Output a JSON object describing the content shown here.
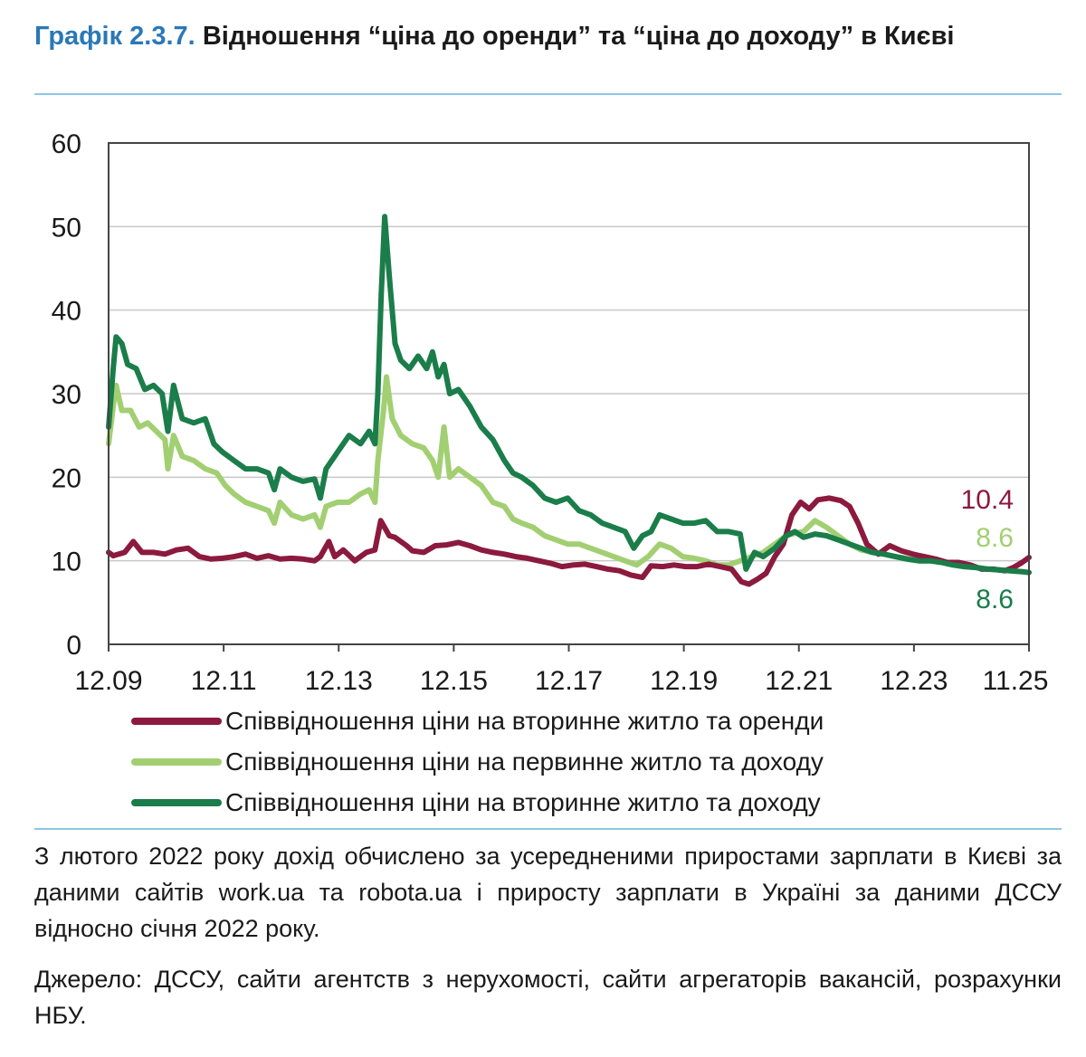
{
  "header": {
    "number": "Графік 2.3.7.",
    "title": "Відношення “ціна до оренди” та “ціна до доходу” в Києві"
  },
  "chart_data": {
    "type": "line",
    "x_ticks": [
      "12.09",
      "12.11",
      "12.13",
      "12.15",
      "12.17",
      "12.19",
      "12.21",
      "12.23",
      "11.25"
    ],
    "ylim": [
      0,
      60
    ],
    "y_ticks": [
      0,
      10,
      20,
      30,
      40,
      50,
      60
    ],
    "grid": true,
    "legend_position": "bottom",
    "series": [
      {
        "name": "Співвідношення ціни на вторинне житло та оренди",
        "color": "#8b1a3e",
        "end_label": "10.4",
        "points": [
          [
            2009.92,
            11.0
          ],
          [
            2010.0,
            10.6
          ],
          [
            2010.2,
            11.0
          ],
          [
            2010.35,
            12.3
          ],
          [
            2010.5,
            11.0
          ],
          [
            2010.7,
            11.0
          ],
          [
            2010.9,
            10.8
          ],
          [
            2011.1,
            11.3
          ],
          [
            2011.3,
            11.5
          ],
          [
            2011.5,
            10.5
          ],
          [
            2011.7,
            10.2
          ],
          [
            2011.9,
            10.3
          ],
          [
            2012.1,
            10.5
          ],
          [
            2012.3,
            10.8
          ],
          [
            2012.5,
            10.3
          ],
          [
            2012.7,
            10.6
          ],
          [
            2012.9,
            10.2
          ],
          [
            2013.1,
            10.3
          ],
          [
            2013.3,
            10.2
          ],
          [
            2013.5,
            10.0
          ],
          [
            2013.6,
            10.5
          ],
          [
            2013.75,
            12.3
          ],
          [
            2013.85,
            10.5
          ],
          [
            2014.0,
            11.3
          ],
          [
            2014.2,
            10.0
          ],
          [
            2014.4,
            11.0
          ],
          [
            2014.55,
            11.3
          ],
          [
            2014.65,
            14.8
          ],
          [
            2014.8,
            13.0
          ],
          [
            2014.9,
            12.8
          ],
          [
            2015.1,
            11.8
          ],
          [
            2015.2,
            11.2
          ],
          [
            2015.4,
            11.0
          ],
          [
            2015.6,
            11.8
          ],
          [
            2015.8,
            11.9
          ],
          [
            2016.0,
            12.2
          ],
          [
            2016.2,
            11.8
          ],
          [
            2016.4,
            11.3
          ],
          [
            2016.6,
            11.0
          ],
          [
            2016.8,
            10.8
          ],
          [
            2017.0,
            10.5
          ],
          [
            2017.2,
            10.3
          ],
          [
            2017.4,
            10.0
          ],
          [
            2017.6,
            9.7
          ],
          [
            2017.8,
            9.3
          ],
          [
            2018.0,
            9.5
          ],
          [
            2018.2,
            9.6
          ],
          [
            2018.4,
            9.3
          ],
          [
            2018.6,
            9.0
          ],
          [
            2018.8,
            8.8
          ],
          [
            2019.0,
            8.3
          ],
          [
            2019.2,
            8.0
          ],
          [
            2019.35,
            9.4
          ],
          [
            2019.55,
            9.3
          ],
          [
            2019.75,
            9.5
          ],
          [
            2019.95,
            9.3
          ],
          [
            2020.15,
            9.3
          ],
          [
            2020.35,
            9.6
          ],
          [
            2020.55,
            9.3
          ],
          [
            2020.75,
            9.0
          ],
          [
            2020.92,
            7.5
          ],
          [
            2021.05,
            7.2
          ],
          [
            2021.2,
            7.8
          ],
          [
            2021.35,
            8.5
          ],
          [
            2021.5,
            10.5
          ],
          [
            2021.65,
            12.0
          ],
          [
            2021.8,
            15.5
          ],
          [
            2021.95,
            17.0
          ],
          [
            2022.1,
            16.2
          ],
          [
            2022.25,
            17.3
          ],
          [
            2022.45,
            17.5
          ],
          [
            2022.65,
            17.2
          ],
          [
            2022.8,
            16.5
          ],
          [
            2022.95,
            14.5
          ],
          [
            2023.1,
            12.0
          ],
          [
            2023.3,
            10.8
          ],
          [
            2023.5,
            11.8
          ],
          [
            2023.7,
            11.2
          ],
          [
            2023.9,
            10.8
          ],
          [
            2024.1,
            10.5
          ],
          [
            2024.3,
            10.2
          ],
          [
            2024.5,
            9.8
          ],
          [
            2024.7,
            9.8
          ],
          [
            2024.9,
            9.5
          ],
          [
            2025.1,
            9.0
          ],
          [
            2025.3,
            9.0
          ],
          [
            2025.5,
            8.8
          ],
          [
            2025.65,
            9.2
          ],
          [
            2025.8,
            9.8
          ],
          [
            2025.92,
            10.4
          ]
        ]
      },
      {
        "name": "Співвідношення ціни на первинне житло та доходу",
        "color": "#a2cf72",
        "end_label": "8.6",
        "points": [
          [
            2009.92,
            24.0
          ],
          [
            2010.0,
            28.5
          ],
          [
            2010.05,
            31.0
          ],
          [
            2010.15,
            28.0
          ],
          [
            2010.3,
            28.0
          ],
          [
            2010.45,
            26.0
          ],
          [
            2010.6,
            26.5
          ],
          [
            2010.75,
            25.5
          ],
          [
            2010.9,
            24.5
          ],
          [
            2010.95,
            21.0
          ],
          [
            2011.05,
            25.0
          ],
          [
            2011.2,
            22.5
          ],
          [
            2011.4,
            22.0
          ],
          [
            2011.6,
            21.0
          ],
          [
            2011.8,
            20.5
          ],
          [
            2011.95,
            19.0
          ],
          [
            2012.1,
            18.0
          ],
          [
            2012.3,
            17.0
          ],
          [
            2012.5,
            16.5
          ],
          [
            2012.7,
            16.0
          ],
          [
            2012.8,
            14.5
          ],
          [
            2012.9,
            17.0
          ],
          [
            2013.1,
            15.5
          ],
          [
            2013.3,
            15.0
          ],
          [
            2013.5,
            15.5
          ],
          [
            2013.6,
            14.0
          ],
          [
            2013.7,
            16.5
          ],
          [
            2013.9,
            17.0
          ],
          [
            2014.1,
            17.0
          ],
          [
            2014.3,
            18.0
          ],
          [
            2014.45,
            18.5
          ],
          [
            2014.55,
            17.0
          ],
          [
            2014.6,
            22.0
          ],
          [
            2014.7,
            28.0
          ],
          [
            2014.75,
            32.0
          ],
          [
            2014.85,
            27.0
          ],
          [
            2015.0,
            25.0
          ],
          [
            2015.2,
            24.0
          ],
          [
            2015.4,
            23.5
          ],
          [
            2015.55,
            22.0
          ],
          [
            2015.65,
            20.0
          ],
          [
            2015.75,
            26.0
          ],
          [
            2015.85,
            20.0
          ],
          [
            2016.0,
            21.0
          ],
          [
            2016.2,
            20.0
          ],
          [
            2016.4,
            19.0
          ],
          [
            2016.6,
            17.0
          ],
          [
            2016.8,
            16.5
          ],
          [
            2016.95,
            15.0
          ],
          [
            2017.1,
            14.5
          ],
          [
            2017.3,
            14.0
          ],
          [
            2017.5,
            13.0
          ],
          [
            2017.7,
            12.5
          ],
          [
            2017.9,
            12.0
          ],
          [
            2018.1,
            12.0
          ],
          [
            2018.3,
            11.5
          ],
          [
            2018.5,
            11.0
          ],
          [
            2018.7,
            10.5
          ],
          [
            2018.9,
            10.0
          ],
          [
            2019.1,
            9.5
          ],
          [
            2019.3,
            10.5
          ],
          [
            2019.5,
            12.0
          ],
          [
            2019.7,
            11.5
          ],
          [
            2019.9,
            10.5
          ],
          [
            2020.1,
            10.3
          ],
          [
            2020.3,
            10.0
          ],
          [
            2020.5,
            9.5
          ],
          [
            2020.7,
            9.5
          ],
          [
            2020.9,
            10.0
          ],
          [
            2021.1,
            10.5
          ],
          [
            2021.3,
            11.0
          ],
          [
            2021.5,
            12.0
          ],
          [
            2021.7,
            13.0
          ],
          [
            2021.85,
            13.3
          ],
          [
            2022.0,
            13.5
          ],
          [
            2022.2,
            14.8
          ],
          [
            2022.4,
            14.0
          ],
          [
            2022.6,
            13.0
          ],
          [
            2022.8,
            12.0
          ],
          [
            2023.0,
            11.3
          ],
          [
            2023.2,
            11.0
          ],
          [
            2023.4,
            10.8
          ],
          [
            2023.6,
            10.5
          ],
          [
            2023.8,
            10.3
          ],
          [
            2024.0,
            10.0
          ],
          [
            2024.2,
            10.0
          ],
          [
            2024.4,
            9.8
          ],
          [
            2024.6,
            9.5
          ],
          [
            2024.8,
            9.3
          ],
          [
            2025.0,
            9.2
          ],
          [
            2025.2,
            9.0
          ],
          [
            2025.4,
            8.9
          ],
          [
            2025.6,
            8.8
          ],
          [
            2025.8,
            8.7
          ],
          [
            2025.92,
            8.6
          ]
        ]
      },
      {
        "name": "Співвідношення ціни на вторинне житло та доходу",
        "color": "#1a7d4a",
        "end_label": "8.6",
        "points": [
          [
            2009.92,
            26.0
          ],
          [
            2010.0,
            33.0
          ],
          [
            2010.05,
            36.8
          ],
          [
            2010.15,
            36.0
          ],
          [
            2010.25,
            33.5
          ],
          [
            2010.4,
            33.0
          ],
          [
            2010.55,
            30.5
          ],
          [
            2010.7,
            31.0
          ],
          [
            2010.85,
            30.0
          ],
          [
            2010.95,
            25.5
          ],
          [
            2011.05,
            31.0
          ],
          [
            2011.2,
            27.0
          ],
          [
            2011.4,
            26.5
          ],
          [
            2011.6,
            27.0
          ],
          [
            2011.75,
            24.0
          ],
          [
            2011.9,
            23.0
          ],
          [
            2012.1,
            22.0
          ],
          [
            2012.3,
            21.0
          ],
          [
            2012.5,
            21.0
          ],
          [
            2012.7,
            20.5
          ],
          [
            2012.8,
            18.5
          ],
          [
            2012.9,
            21.0
          ],
          [
            2013.1,
            20.0
          ],
          [
            2013.3,
            19.5
          ],
          [
            2013.5,
            19.8
          ],
          [
            2013.6,
            17.5
          ],
          [
            2013.7,
            21.0
          ],
          [
            2013.9,
            23.0
          ],
          [
            2014.1,
            25.0
          ],
          [
            2014.3,
            24.0
          ],
          [
            2014.45,
            25.5
          ],
          [
            2014.55,
            24.0
          ],
          [
            2014.6,
            30.0
          ],
          [
            2014.66,
            42.0
          ],
          [
            2014.72,
            51.2
          ],
          [
            2014.8,
            44.0
          ],
          [
            2014.9,
            36.0
          ],
          [
            2015.0,
            34.0
          ],
          [
            2015.15,
            33.0
          ],
          [
            2015.3,
            34.5
          ],
          [
            2015.45,
            33.0
          ],
          [
            2015.55,
            35.0
          ],
          [
            2015.65,
            32.0
          ],
          [
            2015.75,
            33.5
          ],
          [
            2015.85,
            30.0
          ],
          [
            2016.0,
            30.5
          ],
          [
            2016.2,
            28.5
          ],
          [
            2016.4,
            26.0
          ],
          [
            2016.6,
            24.5
          ],
          [
            2016.8,
            22.0
          ],
          [
            2016.95,
            20.5
          ],
          [
            2017.1,
            20.0
          ],
          [
            2017.3,
            19.0
          ],
          [
            2017.5,
            17.5
          ],
          [
            2017.7,
            17.0
          ],
          [
            2017.9,
            17.5
          ],
          [
            2018.1,
            16.0
          ],
          [
            2018.3,
            15.5
          ],
          [
            2018.5,
            14.5
          ],
          [
            2018.7,
            14.0
          ],
          [
            2018.9,
            13.5
          ],
          [
            2019.05,
            11.5
          ],
          [
            2019.2,
            13.0
          ],
          [
            2019.35,
            13.5
          ],
          [
            2019.5,
            15.5
          ],
          [
            2019.7,
            15.0
          ],
          [
            2019.9,
            14.5
          ],
          [
            2020.1,
            14.5
          ],
          [
            2020.3,
            14.8
          ],
          [
            2020.5,
            13.5
          ],
          [
            2020.7,
            13.5
          ],
          [
            2020.9,
            13.2
          ],
          [
            2021.0,
            9.0
          ],
          [
            2021.15,
            11.0
          ],
          [
            2021.3,
            10.5
          ],
          [
            2021.5,
            11.5
          ],
          [
            2021.7,
            13.0
          ],
          [
            2021.85,
            13.5
          ],
          [
            2022.0,
            12.8
          ],
          [
            2022.2,
            13.2
          ],
          [
            2022.4,
            13.0
          ],
          [
            2022.6,
            12.5
          ],
          [
            2022.8,
            12.0
          ],
          [
            2023.0,
            11.5
          ],
          [
            2023.2,
            11.0
          ],
          [
            2023.4,
            10.8
          ],
          [
            2023.6,
            10.5
          ],
          [
            2023.8,
            10.2
          ],
          [
            2024.0,
            10.0
          ],
          [
            2024.2,
            10.0
          ],
          [
            2024.4,
            9.8
          ],
          [
            2024.6,
            9.5
          ],
          [
            2024.8,
            9.3
          ],
          [
            2025.0,
            9.2
          ],
          [
            2025.2,
            9.0
          ],
          [
            2025.4,
            8.9
          ],
          [
            2025.6,
            8.8
          ],
          [
            2025.8,
            8.7
          ],
          [
            2025.92,
            8.6
          ]
        ]
      }
    ]
  },
  "note": "З лютого 2022 року дохід обчислено за усередненими приростами зарплати в Києві за даними сайтів work.ua та robota.ua і приросту зарплати в Україні за даними ДССУ відносно січня 2022 року.",
  "source": "Джерело: ДССУ, сайти агентств з нерухомості, сайти агрегаторів вакансій, розрахунки НБУ."
}
